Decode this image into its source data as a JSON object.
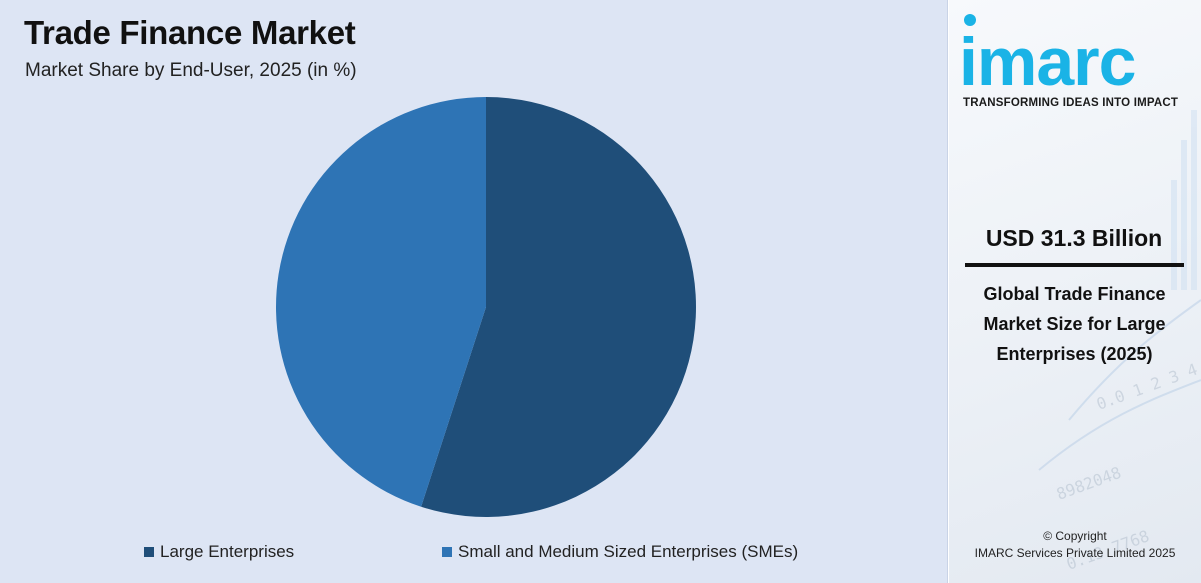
{
  "chart_data": {
    "type": "pie",
    "title": "Trade Finance Market",
    "subtitle": "Market Share by End-User, 2025 (in %)",
    "categories": [
      "Large Enterprises",
      "Small and Medium Sized Enterprises (SMEs)"
    ],
    "values": [
      55,
      45
    ],
    "colors": [
      "#1f4e79",
      "#2e74b5"
    ],
    "start_angle_deg": 0,
    "legend_position": "bottom"
  },
  "side_panel": {
    "logo": "imarc",
    "tagline": "TRANSFORMING IDEAS INTO IMPACT",
    "value": "USD 31.3 Billion",
    "value_description": "Global Trade Finance Market Size for Large Enterprises (2025)",
    "copyright_line1": "© Copyright",
    "copyright_line2": "IMARC Services Private Limited 2025"
  },
  "colors": {
    "chart_background": "#dde5f4",
    "brand": "#1ab3e6"
  }
}
